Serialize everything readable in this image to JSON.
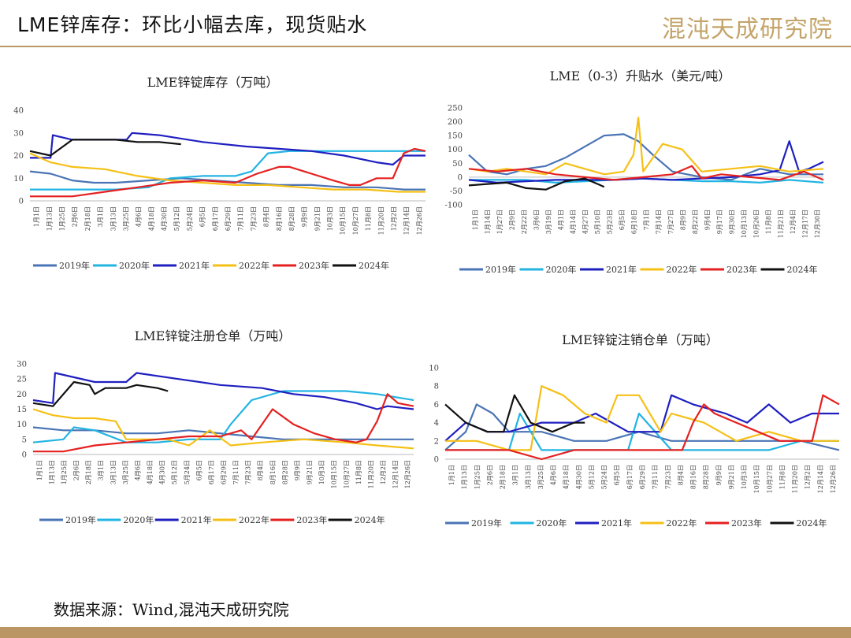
{
  "page": {
    "title": "LME锌库存：环比小幅去库，现货贴水",
    "logo": "混沌天成研究院",
    "source": "数据来源：Wind,混沌天成研究院"
  },
  "colors": {
    "2019年": "#4a74b5",
    "2020年": "#22b4e2",
    "2021年": "#1f1fc0",
    "2022年": "#f5c016",
    "2023年": "#e52020",
    "2024年": "#111111",
    "accent": "#b99663"
  },
  "chart_data": [
    {
      "type": "line",
      "title": "LME锌锭库存（万吨）",
      "ylim": [
        0,
        40
      ],
      "yticks": [
        0,
        10,
        20,
        30,
        40
      ],
      "x_range": [
        1,
        365
      ],
      "x_ticks": [
        "1月1日",
        "1月13日",
        "1月25日",
        "2月6日",
        "2月18日",
        "3月1日",
        "3月13日",
        "3月25日",
        "4月6日",
        "4月18日",
        "4月30日",
        "5月12日",
        "5月24日",
        "6月5日",
        "6月17日",
        "6月29日",
        "7月11日",
        "7月23日",
        "8月4日",
        "8月16日",
        "8月28日",
        "9月9日",
        "9月21日",
        "10月3日",
        "10月15日",
        "10月27日",
        "11月8日",
        "11月20日",
        "12月2日",
        "12月14日",
        "12月26日"
      ],
      "series": [
        {
          "name": "2019年",
          "x": [
            1,
            20,
            40,
            60,
            80,
            110,
            140,
            170,
            200,
            230,
            260,
            290,
            320,
            345,
            365
          ],
          "values": [
            13,
            12,
            9,
            8,
            8,
            9,
            10,
            9,
            8,
            7,
            7,
            6,
            6,
            5,
            5
          ]
        },
        {
          "name": "2020年",
          "x": [
            1,
            40,
            80,
            110,
            130,
            160,
            190,
            205,
            220,
            240,
            270,
            300,
            330,
            365
          ],
          "values": [
            5,
            5,
            5,
            6,
            10,
            11,
            11,
            13,
            21,
            22,
            22,
            22,
            22,
            22
          ]
        },
        {
          "name": "2021年",
          "x": [
            1,
            20,
            22,
            40,
            90,
            95,
            120,
            160,
            200,
            230,
            260,
            290,
            320,
            335,
            345,
            365
          ],
          "values": [
            19,
            19,
            29,
            27,
            27,
            30,
            29,
            26,
            24,
            23,
            22,
            20,
            17,
            16,
            20,
            20
          ]
        },
        {
          "name": "2022年",
          "x": [
            1,
            20,
            40,
            70,
            100,
            130,
            160,
            190,
            220,
            250,
            280,
            310,
            340,
            365
          ],
          "values": [
            21,
            17,
            15,
            14,
            11,
            9,
            8,
            7,
            7,
            6,
            5,
            5,
            4,
            4
          ]
        },
        {
          "name": "2023年",
          "x": [
            1,
            20,
            40,
            70,
            100,
            130,
            160,
            190,
            210,
            230,
            240,
            260,
            280,
            295,
            305,
            320,
            335,
            345,
            355,
            365
          ],
          "values": [
            2,
            2,
            2,
            4,
            6,
            8,
            9,
            8,
            12,
            15,
            15,
            12,
            9,
            7,
            7,
            10,
            10,
            21,
            23,
            22
          ]
        },
        {
          "name": "2024年",
          "x": [
            1,
            20,
            40,
            60,
            80,
            100,
            120,
            140
          ],
          "values": [
            22,
            20,
            27,
            27,
            27,
            26,
            26,
            25
          ]
        }
      ]
    },
    {
      "type": "line",
      "title": "LME（0-3）升贴水（美元/吨）",
      "ylim": [
        -100,
        250
      ],
      "yticks": [
        -100,
        -50,
        0,
        50,
        100,
        150,
        200,
        250
      ],
      "x_range": [
        1,
        365
      ],
      "x_ticks": [
        "1月1日",
        "1月14日",
        "1月27日",
        "2月9日",
        "2月22日",
        "3月6日",
        "3月19日",
        "4月1日",
        "4月14日",
        "4月27日",
        "5月10日",
        "5月23日",
        "6月5日",
        "6月18日",
        "7月1日",
        "7月14日",
        "7月27日",
        "8月9日",
        "8月22日",
        "9月4日",
        "9月17日",
        "9月30日",
        "10月13日",
        "10月26日",
        "11月8日",
        "11月21日",
        "12月4日",
        "12月17日",
        "12月30日"
      ],
      "series": [
        {
          "name": "2019年",
          "x": [
            1,
            20,
            40,
            60,
            80,
            100,
            120,
            140,
            160,
            175,
            190,
            210,
            240,
            270,
            300,
            330,
            365
          ],
          "values": [
            80,
            20,
            10,
            30,
            40,
            70,
            110,
            150,
            155,
            130,
            80,
            20,
            0,
            -10,
            30,
            10,
            10
          ]
        },
        {
          "name": "2020年",
          "x": [
            1,
            30,
            60,
            90,
            120,
            150,
            180,
            210,
            240,
            270,
            300,
            330,
            365
          ],
          "values": [
            -10,
            -10,
            -10,
            -20,
            -15,
            -10,
            -5,
            -10,
            -15,
            -15,
            -20,
            -10,
            -20
          ]
        },
        {
          "name": "2021年",
          "x": [
            1,
            30,
            60,
            90,
            120,
            150,
            180,
            210,
            240,
            270,
            300,
            320,
            330,
            340,
            350,
            365
          ],
          "values": [
            -10,
            -20,
            -15,
            -10,
            -10,
            -10,
            -5,
            -10,
            -5,
            0,
            10,
            25,
            130,
            20,
            30,
            55
          ]
        },
        {
          "name": "2022年",
          "x": [
            1,
            20,
            40,
            60,
            80,
            100,
            120,
            140,
            160,
            170,
            175,
            180,
            200,
            220,
            240,
            270,
            300,
            330,
            365
          ],
          "values": [
            30,
            20,
            30,
            20,
            10,
            50,
            30,
            10,
            20,
            80,
            215,
            20,
            120,
            100,
            20,
            30,
            40,
            20,
            30
          ]
        },
        {
          "name": "2023年",
          "x": [
            1,
            30,
            60,
            90,
            120,
            150,
            180,
            210,
            230,
            240,
            260,
            290,
            320,
            345,
            365
          ],
          "values": [
            30,
            20,
            30,
            10,
            0,
            -10,
            0,
            10,
            40,
            -5,
            10,
            0,
            -10,
            20,
            -10
          ]
        },
        {
          "name": "2024年",
          "x": [
            1,
            20,
            40,
            60,
            80,
            100,
            120,
            140
          ],
          "values": [
            -30,
            -25,
            -20,
            -40,
            -45,
            -15,
            -5,
            -35
          ]
        }
      ]
    },
    {
      "type": "line",
      "title": "LME锌锭注册仓单（万吨）",
      "ylim": [
        0,
        30
      ],
      "yticks": [
        0,
        5,
        10,
        15,
        20,
        25,
        30
      ],
      "x_range": [
        1,
        365
      ],
      "x_ticks": [
        "1月1日",
        "1月13日",
        "1月25日",
        "2月6日",
        "2月18日",
        "3月1日",
        "3月13日",
        "3月25日",
        "4月6日",
        "4月18日",
        "4月30日",
        "5月12日",
        "5月24日",
        "6月5日",
        "6月17日",
        "6月29日",
        "7月11日",
        "7月23日",
        "8月4日",
        "8月16日",
        "8月28日",
        "9月9日",
        "9月21日",
        "10月3日",
        "10月15日",
        "10月27日",
        "11月8日",
        "11月20日",
        "12月2日",
        "12月14日",
        "12月26日"
      ],
      "series": [
        {
          "name": "2019年",
          "x": [
            1,
            30,
            60,
            90,
            120,
            150,
            180,
            210,
            240,
            270,
            300,
            330,
            365
          ],
          "values": [
            9,
            8,
            8,
            7,
            7,
            8,
            7,
            6,
            5,
            5,
            5,
            5,
            5
          ]
        },
        {
          "name": "2020年",
          "x": [
            1,
            30,
            40,
            60,
            90,
            120,
            150,
            180,
            190,
            210,
            240,
            270,
            300,
            330,
            365
          ],
          "values": [
            4,
            5,
            9,
            8,
            4,
            4,
            5,
            5,
            10,
            18,
            21,
            21,
            21,
            20,
            18
          ]
        },
        {
          "name": "2021年",
          "x": [
            1,
            20,
            22,
            60,
            90,
            100,
            140,
            180,
            220,
            250,
            280,
            310,
            330,
            340,
            365
          ],
          "values": [
            18,
            17,
            27,
            24,
            24,
            27,
            25,
            23,
            22,
            20,
            19,
            17,
            15,
            16,
            15
          ]
        },
        {
          "name": "2022年",
          "x": [
            1,
            20,
            40,
            60,
            80,
            90,
            110,
            130,
            150,
            170,
            190,
            220,
            260,
            300,
            330,
            365
          ],
          "values": [
            15,
            13,
            12,
            12,
            11,
            5,
            5,
            5,
            3,
            8,
            3,
            4,
            5,
            4,
            3,
            2
          ]
        },
        {
          "name": "2023年",
          "x": [
            1,
            30,
            60,
            90,
            120,
            150,
            180,
            200,
            210,
            230,
            250,
            270,
            290,
            310,
            320,
            330,
            340,
            350,
            365
          ],
          "values": [
            1,
            1,
            3,
            4,
            5,
            6,
            6,
            8,
            5,
            15,
            10,
            7,
            5,
            4,
            5,
            11,
            20,
            17,
            16
          ]
        },
        {
          "name": "2024年",
          "x": [
            1,
            20,
            40,
            55,
            60,
            70,
            90,
            100,
            120,
            130
          ],
          "values": [
            17,
            16,
            24,
            23,
            20,
            22,
            22,
            23,
            22,
            21
          ]
        }
      ]
    },
    {
      "type": "line",
      "title": "LME锌锭注销仓单（万吨）",
      "ylim": [
        0,
        10
      ],
      "yticks": [
        0,
        2,
        4,
        6,
        8,
        10
      ],
      "x_range": [
        1,
        365
      ],
      "x_ticks": [
        "1月1日",
        "1月13日",
        "1月25日",
        "2月6日",
        "2月18日",
        "3月1日",
        "3月13日",
        "3月25日",
        "4月6日",
        "4月18日",
        "4月30日",
        "5月12日",
        "5月24日",
        "6月5日",
        "6月17日",
        "6月29日",
        "7月11日",
        "7月23日",
        "8月4日",
        "8月16日",
        "8月28日",
        "9月9日",
        "9月21日",
        "10月3日",
        "10月15日",
        "10月27日",
        "11月8日",
        "11月20日",
        "12月2日",
        "12月14日",
        "12月26日"
      ],
      "series": [
        {
          "name": "2019年",
          "x": [
            1,
            20,
            30,
            45,
            60,
            90,
            120,
            150,
            180,
            210,
            240,
            270,
            300,
            330,
            365
          ],
          "values": [
            1,
            3,
            6,
            5,
            3,
            3,
            2,
            2,
            3,
            2,
            2,
            2,
            2,
            2,
            1
          ]
        },
        {
          "name": "2020年",
          "x": [
            1,
            30,
            60,
            70,
            90,
            120,
            150,
            170,
            180,
            210,
            240,
            270,
            300,
            330,
            365
          ],
          "values": [
            1,
            1,
            1,
            5,
            1,
            1,
            1,
            1,
            5,
            1,
            1,
            1,
            1,
            2,
            2
          ]
        },
        {
          "name": "2021年",
          "x": [
            1,
            20,
            40,
            60,
            90,
            120,
            140,
            170,
            200,
            210,
            230,
            260,
            280,
            300,
            320,
            340,
            365
          ],
          "values": [
            2,
            4,
            3,
            3,
            4,
            4,
            5,
            3,
            3,
            7,
            6,
            5,
            4,
            6,
            4,
            5,
            5
          ]
        },
        {
          "name": "2022年",
          "x": [
            1,
            30,
            60,
            80,
            90,
            110,
            130,
            150,
            160,
            180,
            200,
            210,
            240,
            270,
            300,
            330,
            365
          ],
          "values": [
            2,
            2,
            1,
            1,
            8,
            7,
            5,
            4,
            7,
            7,
            3,
            5,
            4,
            2,
            3,
            2,
            2
          ]
        },
        {
          "name": "2023年",
          "x": [
            1,
            30,
            60,
            90,
            120,
            150,
            180,
            200,
            220,
            230,
            240,
            250,
            270,
            290,
            310,
            340,
            350,
            365
          ],
          "values": [
            1,
            1,
            1,
            0,
            1,
            1,
            1,
            1,
            1,
            4,
            6,
            5,
            4,
            3,
            2,
            2,
            7,
            6
          ]
        },
        {
          "name": "2024年",
          "x": [
            1,
            20,
            40,
            55,
            65,
            80,
            100,
            120,
            130
          ],
          "values": [
            6,
            4,
            3,
            3,
            7,
            4,
            3,
            4,
            4
          ]
        }
      ]
    }
  ]
}
